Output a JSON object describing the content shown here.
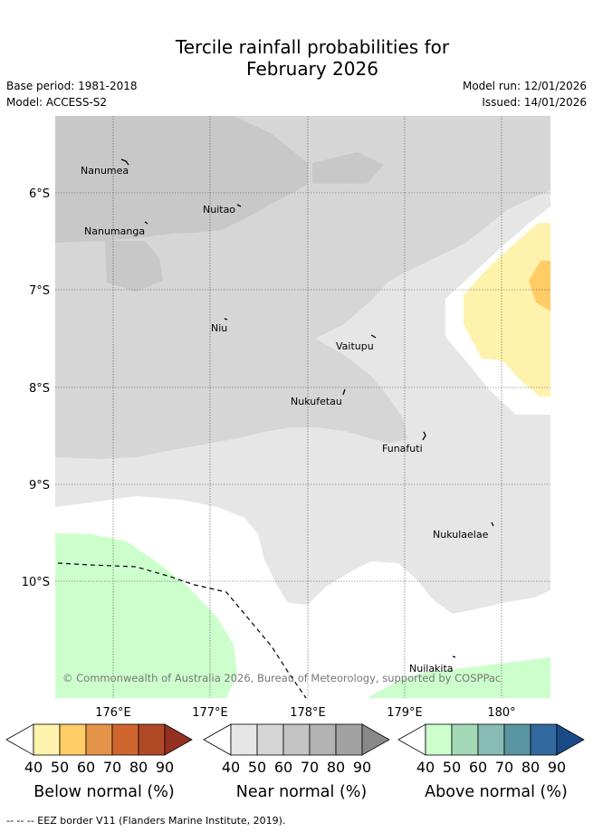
{
  "header": {
    "title_line1": "Tercile rainfall probabilities for",
    "title_line2": "February 2026",
    "base_period": "Base period: 1981-2018",
    "model": "Model: ACCESS-S2",
    "model_run": "Model run: 12/01/2026",
    "issued": "Issued: 14/01/2026"
  },
  "map": {
    "lat_labels": [
      "6°S",
      "7°S",
      "8°S",
      "9°S",
      "10°S"
    ],
    "lon_labels": [
      "176°E",
      "177°E",
      "178°E",
      "179°E",
      "180°"
    ],
    "islands": [
      "Nanumea",
      "Nuitao",
      "Nanumanga",
      "Niu",
      "Vaitupu",
      "Nukufetau",
      "Funafuti",
      "Nukulaelae",
      "Nuilakita"
    ],
    "copyright": "© Commonwealth of Australia 2026, Bureau of Meteorology, supported by COSPPac"
  },
  "legend": {
    "ticks": [
      "40",
      "50",
      "60",
      "70",
      "80",
      "90"
    ],
    "below": {
      "label": "Below normal (%)",
      "colors": [
        "#fff2ac",
        "#ffcc66",
        "#e49449",
        "#d0662f",
        "#b04a26",
        "#943020"
      ]
    },
    "near": {
      "label": "Near normal (%)",
      "colors": [
        "#e6e6e6",
        "#d6d6d6",
        "#c4c4c4",
        "#b3b3b3",
        "#a2a2a2",
        "#888888"
      ]
    },
    "above": {
      "label": "Above normal (%)",
      "colors": [
        "#ccffcc",
        "#a4d9b6",
        "#86bcb4",
        "#5a96a2",
        "#31689e",
        "#1a4a86"
      ]
    }
  },
  "footnote": "-- -- -- EEZ border V11 (Flanders Marine Institute, 2019)."
}
